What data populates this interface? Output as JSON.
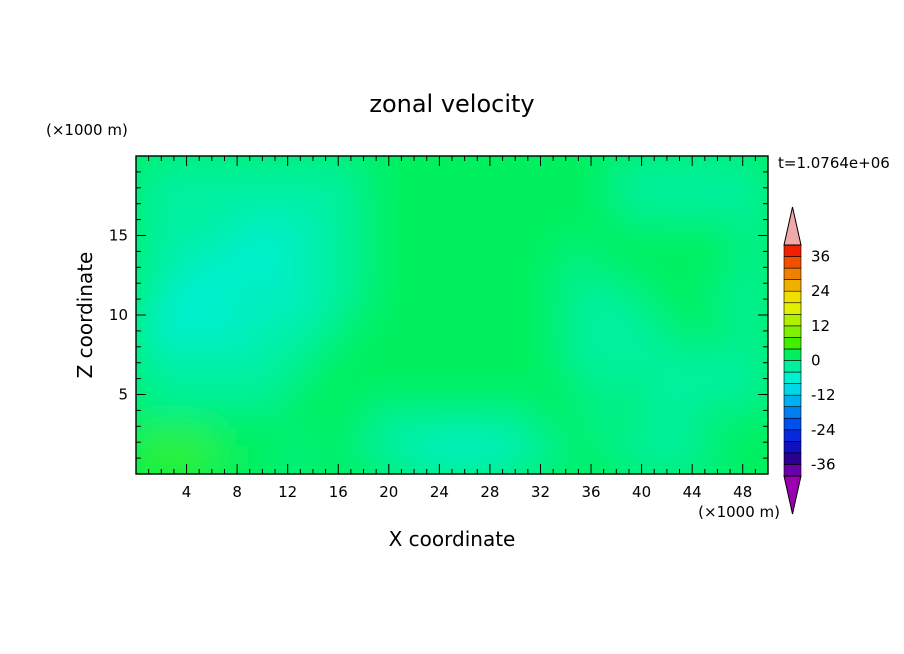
{
  "chart_data": {
    "type": "heatmap",
    "title": "zonal velocity",
    "xlabel": "X coordinate",
    "ylabel": "Z coordinate",
    "x_unit": "(×1000 m)",
    "y_unit": "(×1000 m)",
    "time_label": "t=1.0764e+06",
    "xlim": [
      0,
      50
    ],
    "ylim": [
      0,
      20
    ],
    "x_ticks": [
      4,
      8,
      12,
      16,
      20,
      24,
      28,
      32,
      36,
      40,
      44,
      48
    ],
    "y_ticks": [
      5,
      10,
      15
    ],
    "colorbar": {
      "min": -40,
      "max": 40,
      "step": 4,
      "tick_labels": [
        36,
        24,
        12,
        0,
        -12,
        -24,
        -36
      ],
      "extend": "both",
      "colors": [
        "#6a00a8",
        "#2a0090",
        "#1010c0",
        "#0828e0",
        "#0050f0",
        "#0080f0",
        "#00b0f0",
        "#00d8e8",
        "#00f0d0",
        "#00f0a0",
        "#00f060",
        "#40f000",
        "#80f000",
        "#b0f000",
        "#e0f000",
        "#f0e000",
        "#f0b000",
        "#f08000",
        "#f05000",
        "#f02000"
      ],
      "over_color": "#f0a8a8",
      "under_color": "#9a00b0"
    },
    "grid_shape": [
      10,
      25
    ],
    "values_rows_top_to_bottom": [
      [
        -2,
        -2,
        -2,
        -2,
        -2,
        -2,
        -2,
        -2,
        -2,
        0,
        0,
        0,
        0,
        0,
        0,
        0,
        0,
        0,
        0,
        -2,
        -2,
        -2,
        -2,
        -2,
        -2
      ],
      [
        -2,
        -2,
        -2,
        -2,
        -2,
        -2,
        -2,
        -2,
        -2,
        0,
        0,
        0,
        0,
        0,
        0,
        0,
        0,
        0,
        0,
        -2,
        -2,
        -2,
        -2,
        -2,
        -2
      ],
      [
        -2,
        -2,
        -2,
        -2,
        -6,
        -6,
        -6,
        -2,
        -2,
        0,
        0,
        0,
        0,
        0,
        0,
        0,
        0,
        0,
        0,
        0,
        0,
        0,
        0,
        0,
        -2
      ],
      [
        -2,
        -2,
        -6,
        -6,
        -6,
        -6,
        -2,
        -2,
        -2,
        0,
        0,
        2,
        2,
        2,
        2,
        0,
        0,
        -2,
        0,
        0,
        0,
        0,
        0,
        0,
        -2
      ],
      [
        -2,
        -6,
        -6,
        -6,
        -2,
        -6,
        -6,
        -2,
        -2,
        0,
        2,
        2,
        2,
        2,
        2,
        0,
        0,
        -2,
        -2,
        -2,
        0,
        0,
        0,
        -2,
        -2
      ],
      [
        -6,
        -6,
        -6,
        -6,
        -6,
        -2,
        -2,
        -2,
        0,
        2,
        2,
        2,
        2,
        2,
        2,
        2,
        0,
        -2,
        -2,
        -2,
        -2,
        0,
        0,
        0,
        -2
      ],
      [
        -2,
        -2,
        -2,
        -2,
        -2,
        -2,
        -2,
        0,
        0,
        0,
        0,
        0,
        0,
        0,
        0,
        0,
        0,
        -2,
        -2,
        -2,
        -2,
        -2,
        -2,
        -2,
        -2
      ],
      [
        -2,
        -2,
        -2,
        -2,
        -2,
        -2,
        2,
        0,
        0,
        0,
        0,
        0,
        0,
        0,
        0,
        0,
        0,
        0,
        -2,
        0,
        -2,
        -2,
        -2,
        -2,
        -2
      ],
      [
        0,
        0,
        2,
        2,
        2,
        0,
        2,
        0,
        0,
        -2,
        -2,
        -2,
        -2,
        -2,
        -2,
        -2,
        0,
        0,
        -2,
        0,
        -2,
        -2,
        0,
        0,
        0
      ],
      [
        6,
        6,
        6,
        2,
        2,
        0,
        -2,
        2,
        0,
        -2,
        -2,
        -6,
        -6,
        -6,
        -6,
        -2,
        -2,
        2,
        0,
        -2,
        -2,
        -2,
        -2,
        0,
        2
      ]
    ]
  }
}
